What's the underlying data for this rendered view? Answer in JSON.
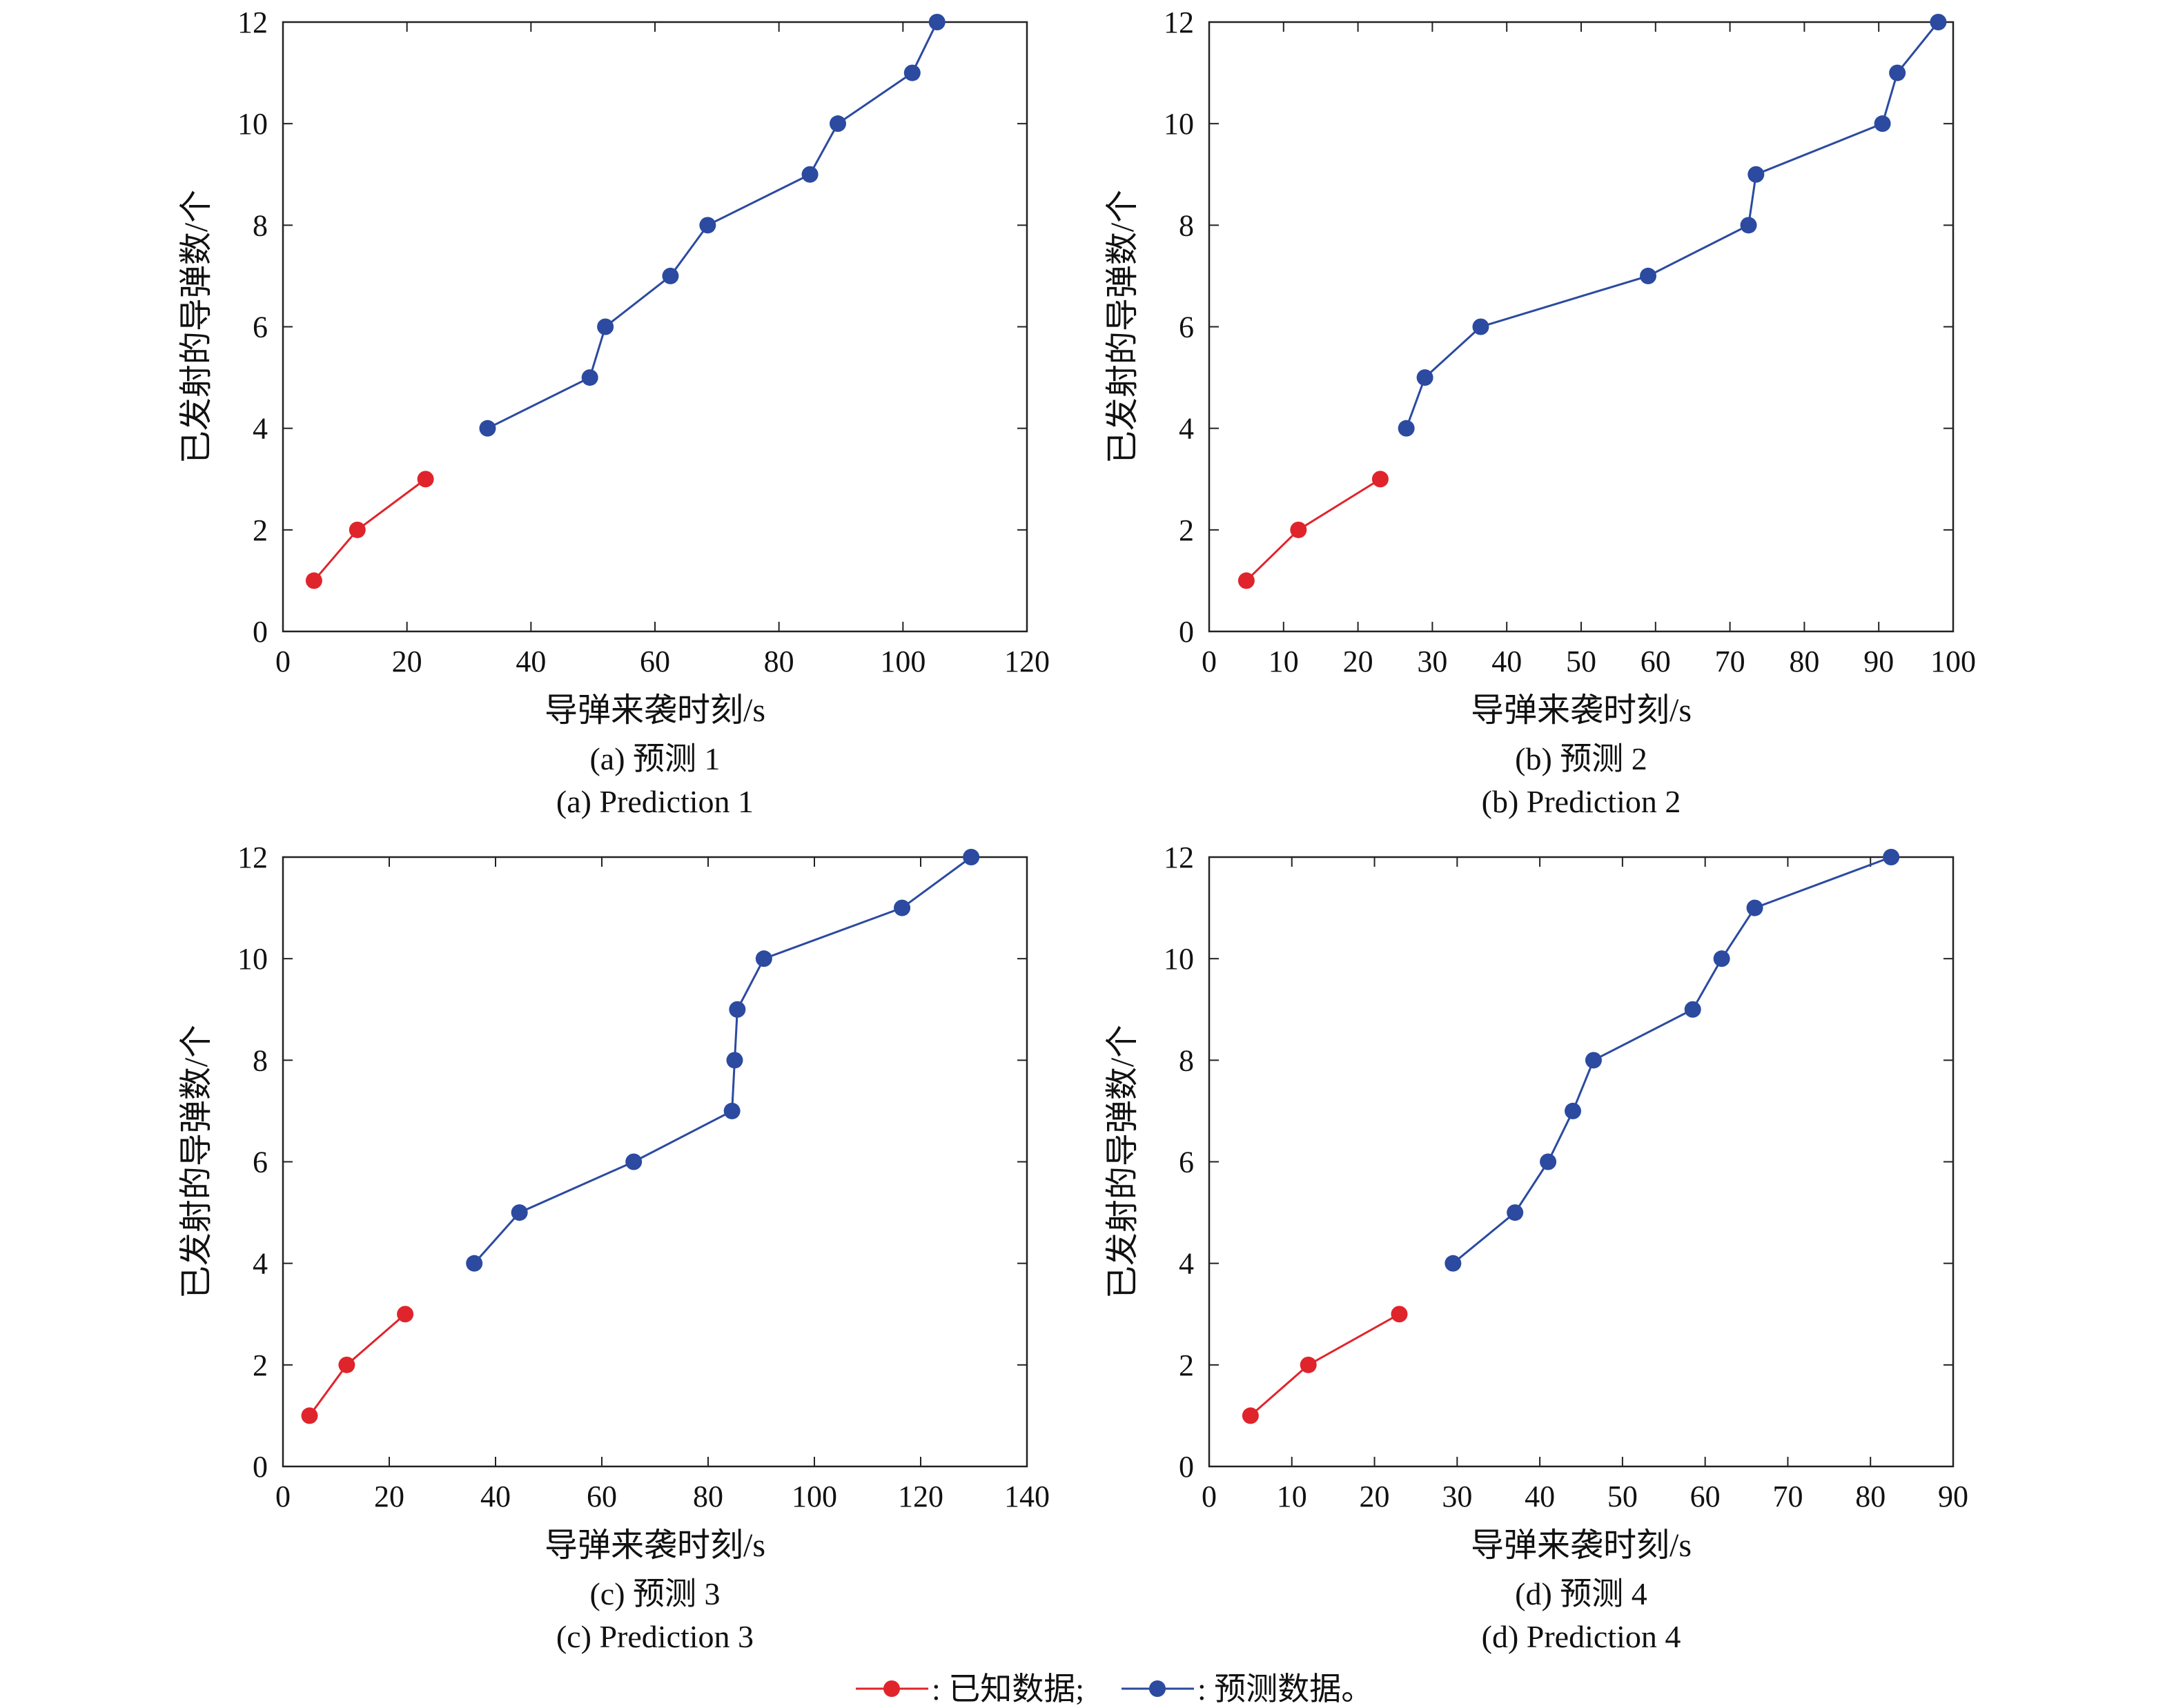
{
  "colors": {
    "known": "#e0242b",
    "predicted": "#2b4aa0",
    "axis": "#222222"
  },
  "legend": {
    "known_label": ": 已知数据;",
    "predicted_label": ": 预测数据。"
  },
  "chart_data": [
    {
      "type": "line",
      "caption_cn": "(a) 预测 1",
      "caption_en": "(a) Prediction 1",
      "xlabel": "导弹来袭时刻/s",
      "ylabel": "已发射的导弹数/个",
      "xlim": [
        0,
        120
      ],
      "ylim": [
        0,
        12
      ],
      "xticks": [
        0,
        20,
        40,
        60,
        80,
        100,
        120
      ],
      "yticks": [
        0,
        2,
        4,
        6,
        8,
        10,
        12
      ],
      "grid": false,
      "series": [
        {
          "key": "known",
          "points": [
            [
              5,
              1
            ],
            [
              12,
              2
            ],
            [
              23,
              3
            ]
          ]
        },
        {
          "key": "predicted",
          "points": [
            [
              33,
              4
            ],
            [
              49.5,
              5
            ],
            [
              52,
              6
            ],
            [
              62.5,
              7
            ],
            [
              68.5,
              8
            ],
            [
              85,
              9
            ],
            [
              89.5,
              10
            ],
            [
              101.5,
              11
            ],
            [
              105.5,
              12
            ]
          ]
        }
      ]
    },
    {
      "type": "line",
      "caption_cn": "(b) 预测 2",
      "caption_en": "(b) Prediction 2",
      "xlabel": "导弹来袭时刻/s",
      "ylabel": "已发射的导弹数/个",
      "xlim": [
        0,
        100
      ],
      "ylim": [
        0,
        12
      ],
      "xticks": [
        0,
        10,
        20,
        30,
        40,
        50,
        60,
        70,
        80,
        90,
        100
      ],
      "yticks": [
        0,
        2,
        4,
        6,
        8,
        10,
        12
      ],
      "grid": false,
      "series": [
        {
          "key": "known",
          "points": [
            [
              5,
              1
            ],
            [
              12,
              2
            ],
            [
              23,
              3
            ]
          ]
        },
        {
          "key": "predicted",
          "points": [
            [
              26.5,
              4
            ],
            [
              29,
              5
            ],
            [
              36.5,
              6
            ],
            [
              59,
              7
            ],
            [
              72.5,
              8
            ],
            [
              73.5,
              9
            ],
            [
              90.5,
              10
            ],
            [
              92.5,
              11
            ],
            [
              98,
              12
            ]
          ]
        }
      ]
    },
    {
      "type": "line",
      "caption_cn": "(c) 预测 3",
      "caption_en": "(c) Prediction 3",
      "xlabel": "导弹来袭时刻/s",
      "ylabel": "已发射的导弹数/个",
      "xlim": [
        0,
        140
      ],
      "ylim": [
        0,
        12
      ],
      "xticks": [
        0,
        20,
        40,
        60,
        80,
        100,
        120,
        140
      ],
      "yticks": [
        0,
        2,
        4,
        6,
        8,
        10,
        12
      ],
      "grid": false,
      "series": [
        {
          "key": "known",
          "points": [
            [
              5,
              1
            ],
            [
              12,
              2
            ],
            [
              23,
              3
            ]
          ]
        },
        {
          "key": "predicted",
          "points": [
            [
              36,
              4
            ],
            [
              44.5,
              5
            ],
            [
              66,
              6
            ],
            [
              84.5,
              7
            ],
            [
              85,
              8
            ],
            [
              85.5,
              9
            ],
            [
              90.5,
              10
            ],
            [
              116.5,
              11
            ],
            [
              129.5,
              12
            ]
          ]
        }
      ]
    },
    {
      "type": "line",
      "caption_cn": "(d) 预测 4",
      "caption_en": "(d) Prediction 4",
      "xlabel": "导弹来袭时刻/s",
      "ylabel": "已发射的导弹数/个",
      "xlim": [
        0,
        90
      ],
      "ylim": [
        0,
        12
      ],
      "xticks": [
        0,
        10,
        20,
        30,
        40,
        50,
        60,
        70,
        80,
        90
      ],
      "yticks": [
        0,
        2,
        4,
        6,
        8,
        10,
        12
      ],
      "grid": false,
      "series": [
        {
          "key": "known",
          "points": [
            [
              5,
              1
            ],
            [
              12,
              2
            ],
            [
              23,
              3
            ]
          ]
        },
        {
          "key": "predicted",
          "points": [
            [
              29.5,
              4
            ],
            [
              37,
              5
            ],
            [
              41,
              6
            ],
            [
              44,
              7
            ],
            [
              46.5,
              8
            ],
            [
              58.5,
              9
            ],
            [
              62,
              10
            ],
            [
              66,
              11
            ],
            [
              82.5,
              12
            ]
          ]
        }
      ]
    }
  ]
}
